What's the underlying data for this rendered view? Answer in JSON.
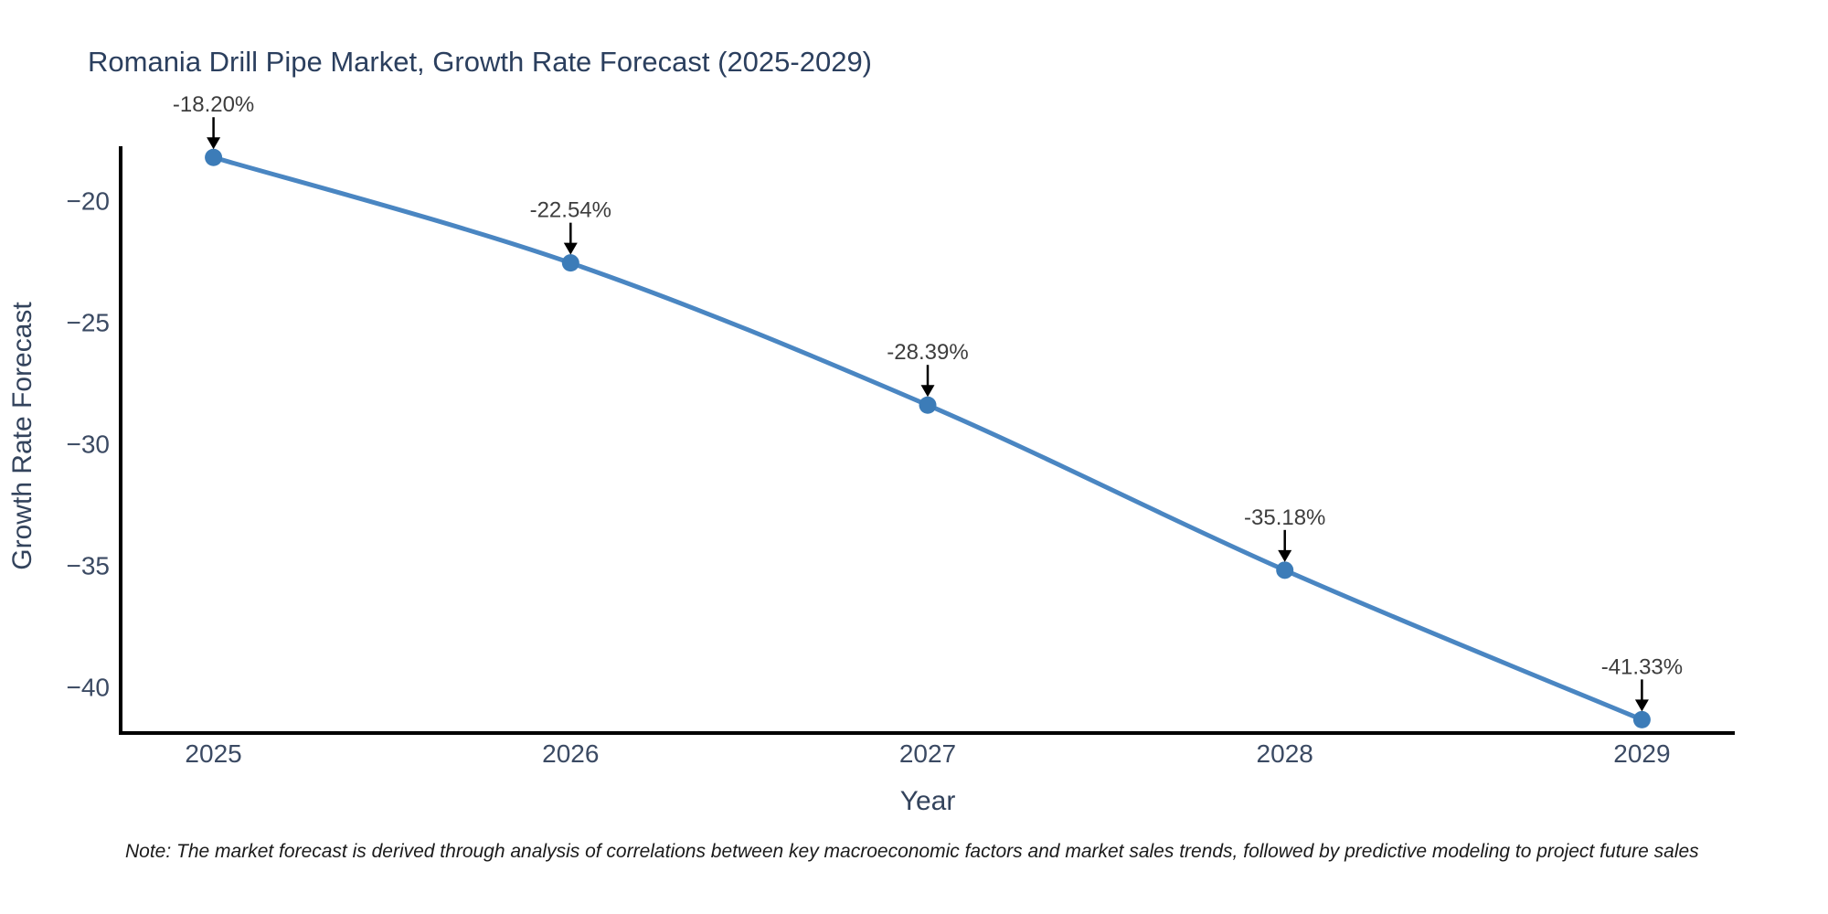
{
  "note": "Note: The market forecast is derived through analysis of correlations between key macroeconomic factors and market sales trends, followed by predictive modeling to project future sales",
  "chart_data": {
    "type": "line",
    "title": "Romania Drill Pipe Market, Growth Rate Forecast (2025-2029)",
    "xlabel": "Year",
    "ylabel": "Growth Rate Forecast",
    "x": [
      2025,
      2026,
      2027,
      2028,
      2029
    ],
    "series": [
      {
        "name": "Growth Rate Forecast",
        "values": [
          -18.2,
          -22.54,
          -28.39,
          -35.18,
          -41.33
        ]
      }
    ],
    "point_labels": [
      "-18.20%",
      "-22.54%",
      "-28.39%",
      "-35.18%",
      "-41.33%"
    ],
    "xticks": [
      2025,
      2026,
      2027,
      2028,
      2029
    ],
    "yticks": [
      -20,
      -25,
      -30,
      -35,
      -40
    ],
    "xlim": [
      2024.74,
      2029.26
    ],
    "ylim": [
      -41.88,
      -17.74
    ],
    "grid": false,
    "legend": false,
    "annotation_style": "black-down-arrow",
    "colors": {
      "line": "#4a86c2",
      "marker": "#3c7cb8",
      "axis": "#000000",
      "arrow": "#000000",
      "title_text": "#2b3f5e",
      "tick_text": "#3b4a63",
      "annotation_text": "#3d3d3d",
      "note_text": "#1a1a1a",
      "background": "#ffffff"
    }
  }
}
